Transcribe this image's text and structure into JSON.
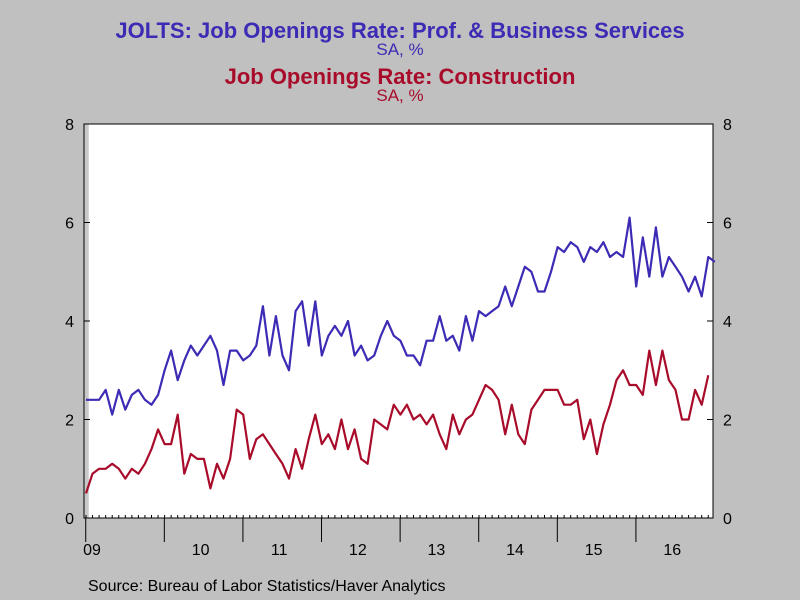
{
  "titles": {
    "series1_title": "JOLTS: Job Openings Rate: Prof. & Business Services",
    "series1_subtitle": "SA, %",
    "series2_title": "Job Openings Rate: Construction",
    "series2_subtitle": "SA, %"
  },
  "source": "Source:  Bureau of Labor Statistics/Haver Analytics",
  "colors": {
    "series1": "#3c2bb4",
    "series2": "#a80c2a",
    "background": "#c0c0c0",
    "recession_shading": "#c8c8c8"
  },
  "chart_data": {
    "type": "line",
    "title": "JOLTS: Job Openings Rate: Prof. & Business Services / Job Openings Rate: Construction",
    "subtitle": "SA, %",
    "x_start": "2009-01",
    "frequency": "monthly",
    "x_tick_labels": [
      "09",
      "10",
      "11",
      "12",
      "13",
      "14",
      "15",
      "16"
    ],
    "ylim": [
      0,
      8
    ],
    "y_ticks": [
      0,
      2,
      4,
      6,
      8
    ],
    "y_axes": "left and right (same scale)",
    "recession_shading": {
      "from": "2009-01",
      "to": "2009-06"
    },
    "grid": false,
    "series": [
      {
        "name": "JOLTS: Job Openings Rate: Prof. & Business Services",
        "values": [
          2.4,
          2.4,
          2.4,
          2.6,
          2.1,
          2.6,
          2.2,
          2.5,
          2.6,
          2.4,
          2.3,
          2.5,
          3.0,
          3.4,
          2.8,
          3.2,
          3.5,
          3.3,
          3.5,
          3.7,
          3.4,
          2.7,
          3.4,
          3.4,
          3.2,
          3.3,
          3.5,
          4.3,
          3.3,
          4.1,
          3.3,
          3.0,
          4.2,
          4.4,
          3.5,
          4.4,
          3.3,
          3.7,
          3.9,
          3.7,
          4.0,
          3.3,
          3.5,
          3.2,
          3.3,
          3.7,
          4.0,
          3.7,
          3.6,
          3.3,
          3.3,
          3.1,
          3.6,
          3.6,
          4.1,
          3.6,
          3.7,
          3.4,
          4.1,
          3.6,
          4.2,
          4.1,
          4.2,
          4.3,
          4.7,
          4.3,
          4.7,
          5.1,
          5.0,
          4.6,
          4.6,
          5.0,
          5.5,
          5.4,
          5.6,
          5.5,
          5.2,
          5.5,
          5.4,
          5.6,
          5.3,
          5.4,
          5.3,
          6.1,
          4.7,
          5.7,
          4.9,
          5.9,
          4.9,
          5.3,
          5.1,
          4.9,
          4.6,
          4.9,
          4.5,
          5.3,
          5.2
        ]
      },
      {
        "name": "Job Openings Rate: Construction",
        "values": [
          0.5,
          0.9,
          1.0,
          1.0,
          1.1,
          1.0,
          0.8,
          1.0,
          0.9,
          1.1,
          1.4,
          1.8,
          1.5,
          1.5,
          2.1,
          0.9,
          1.3,
          1.2,
          1.2,
          0.6,
          1.1,
          0.8,
          1.2,
          2.2,
          2.1,
          1.2,
          1.6,
          1.7,
          1.5,
          1.3,
          1.1,
          0.8,
          1.4,
          1.0,
          1.6,
          2.1,
          1.5,
          1.7,
          1.4,
          2.0,
          1.4,
          1.8,
          1.2,
          1.1,
          2.0,
          1.9,
          1.8,
          2.3,
          2.1,
          2.3,
          2.0,
          2.1,
          1.9,
          2.1,
          1.7,
          1.4,
          2.1,
          1.7,
          2.0,
          2.1,
          2.4,
          2.7,
          2.6,
          2.4,
          1.7,
          2.3,
          1.7,
          1.5,
          2.2,
          2.4,
          2.6,
          2.6,
          2.6,
          2.3,
          2.3,
          2.4,
          1.6,
          2.0,
          1.3,
          1.9,
          2.3,
          2.8,
          3.0,
          2.7,
          2.7,
          2.5,
          3.4,
          2.7,
          3.4,
          2.8,
          2.6,
          2.0,
          2.0,
          2.6,
          2.3,
          2.9
        ]
      }
    ]
  }
}
